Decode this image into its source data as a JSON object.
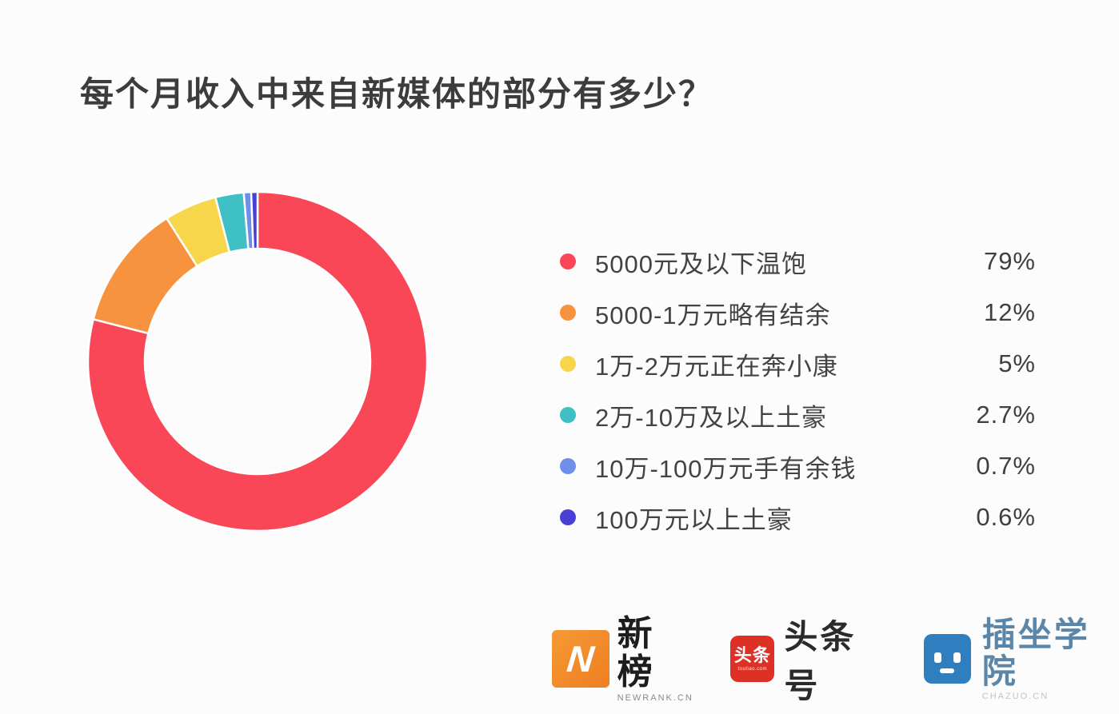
{
  "title": "每个月收入中来自新媒体的部分有多少？",
  "chart_data": {
    "type": "pie",
    "subtype": "donut",
    "title": "每个月收入中来自新媒体的部分有多少？",
    "categories": [
      "5000元及以下温饱",
      "5000-1万元略有结余",
      "1万-2万元正在奔小康",
      "2万-10万及以上土豪",
      "10万-100万元手有余钱",
      "100万元以上土豪"
    ],
    "values": [
      79,
      12,
      5,
      2.7,
      0.7,
      0.6
    ],
    "labels": [
      "79%",
      "12%",
      "5%",
      "2.7%",
      "0.7%",
      "0.6%"
    ],
    "colors": [
      "#F94757",
      "#F7933F",
      "#F8D64B",
      "#3EC0C4",
      "#6E8EE9",
      "#4840D3"
    ],
    "start_angle_deg": 0,
    "direction": "clockwise",
    "donut_hole_ratio": 0.665,
    "slice_separator_color": "#FFFFFF",
    "legend_position": "right",
    "background_color": "#FCFCFC"
  },
  "footer": {
    "newrank": {
      "name": "新榜",
      "caption": "NEWRANK.CN",
      "logo_letter": "N",
      "logo_color": "#EF8428"
    },
    "toutiao": {
      "name": "头条号",
      "badge_text": "头条",
      "badge_caption": "toutiao.com",
      "logo_color": "#DD3126"
    },
    "chazuo": {
      "name": "插坐学院",
      "caption": "CHAZUO.CN",
      "logo_color": "#2E7EC0"
    }
  }
}
